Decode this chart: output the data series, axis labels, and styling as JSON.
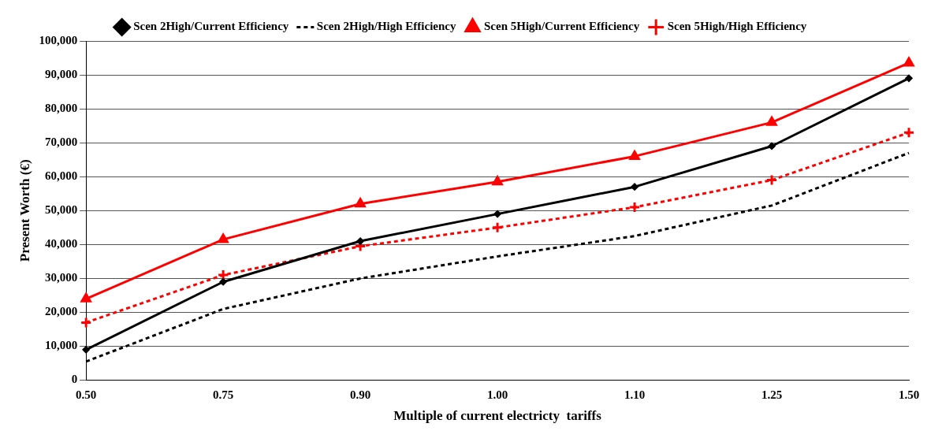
{
  "chart_data": {
    "type": "line",
    "xlabel": "Multiple of current electricty  tariffs",
    "ylabel": "Present Worth (€)",
    "categories": [
      "0.50",
      "0.75",
      "0.90",
      "1.00",
      "1.10",
      "1.25",
      "1.50"
    ],
    "series": [
      {
        "name": "Scen 2High/Current Efficiency",
        "color": "#000000",
        "marker": "diamond",
        "line_style": "solid",
        "values": [
          9000,
          29000,
          41000,
          49000,
          57000,
          69000,
          89000
        ]
      },
      {
        "name": "Scen 2High/High Efficiency",
        "color": "#000000",
        "marker": "none",
        "line_style": "dashed",
        "values": [
          5500,
          21000,
          30000,
          36500,
          42500,
          51500,
          67000
        ]
      },
      {
        "name": "Scen 5High/Current Efficiency",
        "color": "#ff0000",
        "marker": "triangle",
        "line_style": "solid",
        "values": [
          24000,
          41500,
          52000,
          58500,
          66000,
          76000,
          93500
        ]
      },
      {
        "name": "Scen 5High/High Efficiency",
        "color": "#ff0000",
        "marker": "cross",
        "line_style": "dashed",
        "values": [
          17000,
          31000,
          39500,
          45000,
          51000,
          59000,
          73000
        ]
      }
    ],
    "ylim": [
      0,
      100000
    ],
    "yticks": [
      0,
      {
        "value": 10000,
        "label": "10,000"
      },
      {
        "value": 20000,
        "label": "20,000"
      },
      {
        "value": 30000,
        "label": "30,000"
      },
      {
        "value": 40000,
        "label": "40,000"
      },
      {
        "value": 50000,
        "label": "50,000"
      },
      {
        "value": 60000,
        "label": "60,000"
      },
      {
        "value": 70000,
        "label": "70,000"
      },
      {
        "value": 80000,
        "label": "80,000"
      },
      {
        "value": 90000,
        "label": "90,000"
      },
      {
        "value": 100000,
        "label": "100,000"
      }
    ],
    "grid": "y",
    "legend": "top"
  }
}
